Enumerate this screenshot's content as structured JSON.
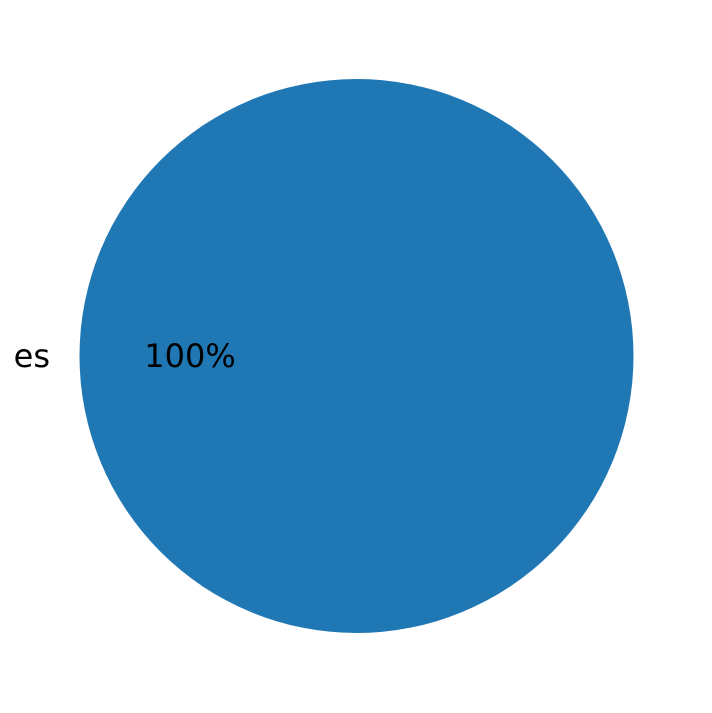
{
  "chart_data": {
    "type": "pie",
    "labels": [
      "es"
    ],
    "values": [
      100
    ],
    "autopct": [
      "100%"
    ],
    "colors": [
      "#1f77b4"
    ],
    "start_angle": 0
  }
}
